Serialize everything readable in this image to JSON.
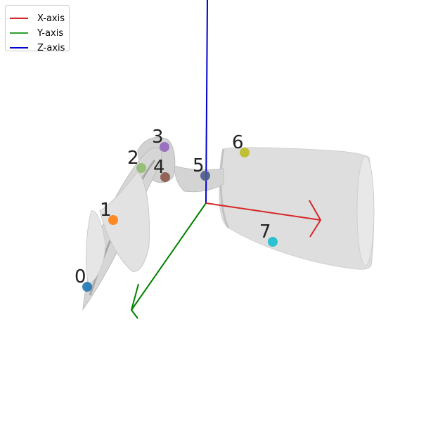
{
  "legend": {
    "items": [
      {
        "label": "X-axis",
        "color": "#d62728"
      },
      {
        "label": "Y-axis",
        "color": "#2ca02c"
      },
      {
        "label": "Z-axis",
        "color": "#0000cc"
      }
    ]
  },
  "mesh": {
    "fill": "#dcdcdc",
    "shade": "#b8b8b8",
    "edge": "#c8c8c8"
  },
  "keypoints": [
    {
      "id": "0",
      "color": "#1f77b4"
    },
    {
      "id": "1",
      "color": "#ff7f0e"
    },
    {
      "id": "2",
      "color": "#8fbc6f"
    },
    {
      "id": "3",
      "color": "#9467bd"
    },
    {
      "id": "4",
      "color": "#8c564b"
    },
    {
      "id": "5",
      "color": "#4a5a8c"
    },
    {
      "id": "6",
      "color": "#bcbd22"
    },
    {
      "id": "7",
      "color": "#17becf"
    }
  ]
}
